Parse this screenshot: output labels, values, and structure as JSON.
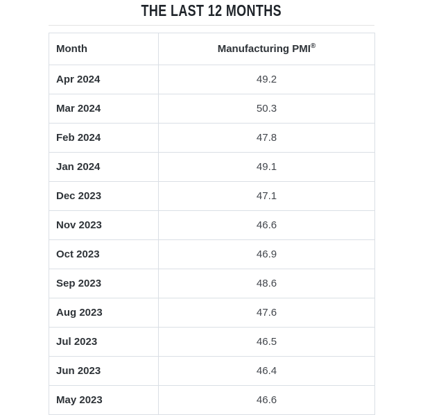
{
  "title": "THE LAST 12 MONTHS",
  "table": {
    "header": {
      "month": "Month",
      "pmi": "Manufacturing PMI",
      "pmi_mark": "®"
    },
    "rows": [
      {
        "month": "Apr 2024",
        "pmi": "49.2"
      },
      {
        "month": "Mar 2024",
        "pmi": "50.3"
      },
      {
        "month": "Feb 2024",
        "pmi": "47.8"
      },
      {
        "month": "Jan 2024",
        "pmi": "49.1"
      },
      {
        "month": "Dec 2023",
        "pmi": "47.1"
      },
      {
        "month": "Nov 2023",
        "pmi": "46.6"
      },
      {
        "month": "Oct 2023",
        "pmi": "46.9"
      },
      {
        "month": "Sep 2023",
        "pmi": "48.6"
      },
      {
        "month": "Aug 2023",
        "pmi": "47.6"
      },
      {
        "month": "Jul 2023",
        "pmi": "46.5"
      },
      {
        "month": "Jun 2023",
        "pmi": "46.4"
      },
      {
        "month": "May 2023",
        "pmi": "46.6"
      }
    ]
  },
  "colors": {
    "title_text": "#1f242a",
    "header_text": "#2e3338",
    "value_text": "#42464c",
    "border": "#dadfe5",
    "top_rule": "#e4e4e4",
    "background": "#ffffff"
  },
  "chart_data": {
    "type": "table",
    "title": "THE LAST 12 MONTHS",
    "columns": [
      "Month",
      "Manufacturing PMI®"
    ],
    "categories": [
      "Apr 2024",
      "Mar 2024",
      "Feb 2024",
      "Jan 2024",
      "Dec 2023",
      "Nov 2023",
      "Oct 2023",
      "Sep 2023",
      "Aug 2023",
      "Jul 2023",
      "Jun 2023",
      "May 2023"
    ],
    "values": [
      49.2,
      50.3,
      47.8,
      49.1,
      47.1,
      46.6,
      46.9,
      48.6,
      47.6,
      46.5,
      46.4,
      46.6
    ]
  }
}
